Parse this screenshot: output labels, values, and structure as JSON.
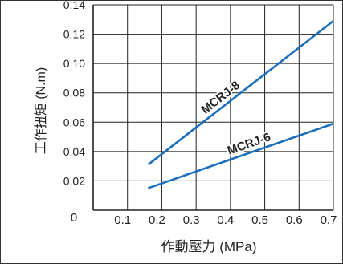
{
  "chart_data": {
    "type": "line",
    "xlabel": "作動壓力 (MPa)",
    "ylabel": "工作扭矩 (N.m)",
    "xlim": [
      0,
      0.7
    ],
    "ylim": [
      0,
      0.14
    ],
    "x_ticks": [
      "0.1",
      "0.2",
      "0.3",
      "0.4",
      "0.5",
      "0.6",
      "0.7"
    ],
    "y_ticks": [
      "0.02",
      "0.04",
      "0.06",
      "0.08",
      "0.10",
      "0.12",
      "0.14"
    ],
    "origin_label": "0",
    "grid": true,
    "legend": "none",
    "series": [
      {
        "name": "MCRJ-8",
        "x": [
          0.16,
          0.7
        ],
        "y": [
          0.031,
          0.129
        ],
        "color": "#1a6fbd"
      },
      {
        "name": "MCRJ-6",
        "x": [
          0.16,
          0.7
        ],
        "y": [
          0.015,
          0.059
        ],
        "color": "#1a6fbd"
      }
    ]
  }
}
